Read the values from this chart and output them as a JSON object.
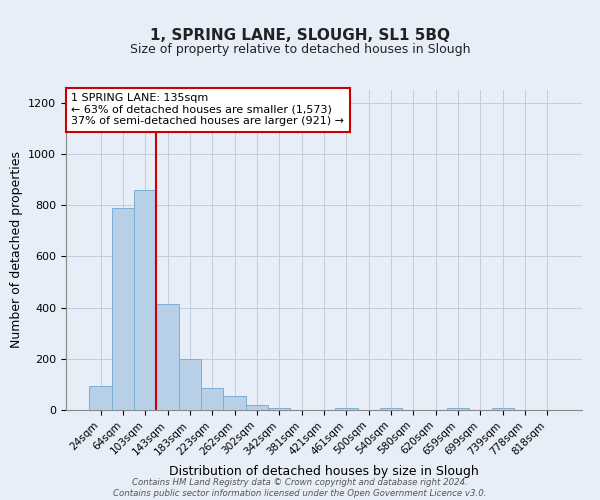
{
  "title_line1": "1, SPRING LANE, SLOUGH, SL1 5BQ",
  "title_line2": "Size of property relative to detached houses in Slough",
  "xlabel": "Distribution of detached houses by size in Slough",
  "ylabel": "Number of detached properties",
  "bar_labels": [
    "24sqm",
    "64sqm",
    "103sqm",
    "143sqm",
    "183sqm",
    "223sqm",
    "262sqm",
    "302sqm",
    "342sqm",
    "381sqm",
    "421sqm",
    "461sqm",
    "500sqm",
    "540sqm",
    "580sqm",
    "620sqm",
    "659sqm",
    "699sqm",
    "739sqm",
    "778sqm",
    "818sqm"
  ],
  "bar_heights": [
    95,
    790,
    860,
    415,
    200,
    85,
    55,
    20,
    8,
    0,
    0,
    8,
    0,
    8,
    0,
    0,
    8,
    0,
    8,
    0,
    0
  ],
  "bar_color": "#b8cfe8",
  "bar_edge_color": "#7aafd4",
  "property_label": "1 SPRING LANE: 135sqm",
  "stat_line1": "← 63% of detached houses are smaller (1,573)",
  "stat_line2": "37% of semi-detached houses are larger (921) →",
  "vline_color": "#cc0000",
  "vline_x_index": 2.5,
  "ylim": [
    0,
    1250
  ],
  "yticks": [
    0,
    200,
    400,
    600,
    800,
    1000,
    1200
  ],
  "footer_line1": "Contains HM Land Registry data © Crown copyright and database right 2024.",
  "footer_line2": "Contains public sector information licensed under the Open Government Licence v3.0.",
  "bg_color": "#e8eef8",
  "plot_bg_color": "#e8eef8"
}
